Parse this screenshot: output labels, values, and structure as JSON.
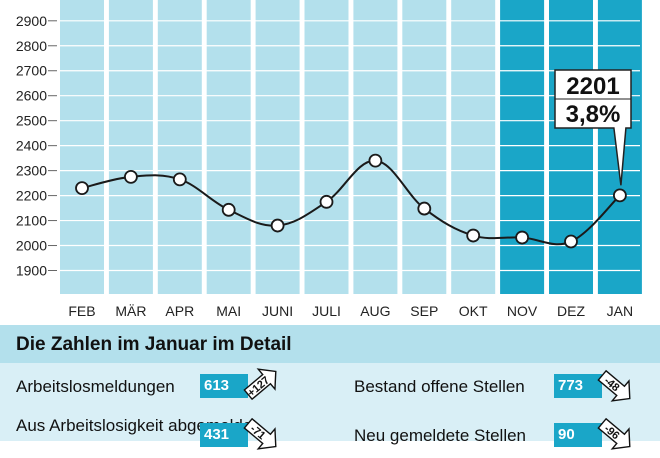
{
  "chart_data": {
    "type": "line",
    "categories": [
      "FEB",
      "MÄR",
      "APR",
      "MAI",
      "JUNI",
      "JULI",
      "AUG",
      "SEP",
      "OKT",
      "NOV",
      "DEZ",
      "JAN"
    ],
    "values": [
      2230,
      2275,
      2265,
      2143,
      2080,
      2175,
      2340,
      2148,
      2040,
      2032,
      2016,
      2201
    ],
    "yticks": [
      1900,
      2000,
      2100,
      2200,
      2300,
      2400,
      2500,
      2600,
      2700,
      2800,
      2900
    ],
    "ylim": [
      1800,
      2960
    ],
    "highlight_categories": [
      "NOV",
      "DEZ",
      "JAN"
    ],
    "annotation": {
      "category": "JAN",
      "value_label": "2201",
      "percent_label": "3,8%"
    },
    "colors": {
      "bar": "#b3e0ec",
      "bar_highlight": "#1aa6c8",
      "line": "#1a1a1a"
    }
  },
  "detail": {
    "title": "Die Zahlen im Januar im Detail",
    "stats": [
      {
        "label": "Arbeitslosmeldungen",
        "value": "613",
        "change": "+127",
        "direction": "up"
      },
      {
        "label": "Bestand offene Stellen",
        "value": "773",
        "change": "-48",
        "direction": "down"
      },
      {
        "label": "Aus Arbeitslosigkeit abgemeldet",
        "value": "431",
        "change": "-71",
        "direction": "down"
      },
      {
        "label": "Neu gemeldete Stellen",
        "value": "90",
        "change": "-96",
        "direction": "down"
      }
    ]
  }
}
